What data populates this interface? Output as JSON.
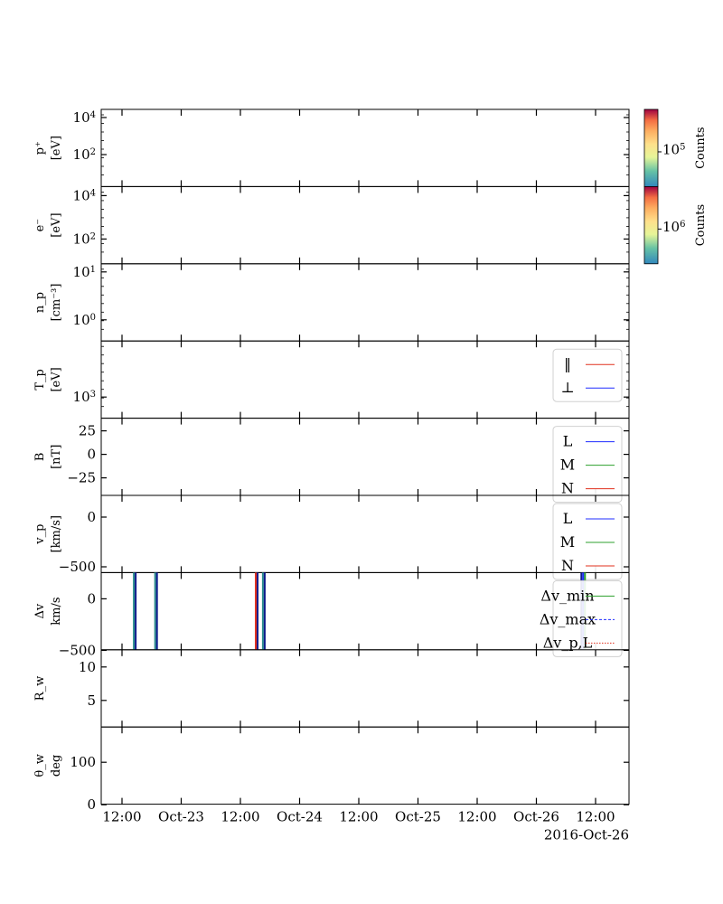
{
  "figure": {
    "xaxis": {
      "ticks": [
        "12:00",
        "Oct-23",
        "12:00",
        "Oct-24",
        "12:00",
        "Oct-25",
        "12:00",
        "Oct-26",
        "12:00"
      ],
      "date_label": "2016-Oct-26"
    }
  },
  "colors": {
    "red": "#e0301e",
    "blue": "#1f2cff",
    "green": "#2ca02c",
    "teal": "#2a8c8c",
    "navy": "#0c1a8a"
  },
  "chart_data": [
    {
      "type": "heatmap",
      "ylabel": "p⁺ [eV]",
      "yscale": "log",
      "yticks": [
        "10^4",
        "10^2"
      ],
      "colorbar": {
        "label": "Counts",
        "tick": "10^5",
        "colormap": "Spectral_r"
      }
    },
    {
      "type": "heatmap",
      "ylabel": "e⁻ [eV]",
      "yscale": "log",
      "yticks": [
        "10^4",
        "10^2"
      ],
      "colorbar": {
        "label": "Counts",
        "tick": "10^6",
        "colormap": "Spectral_r"
      }
    },
    {
      "type": "line",
      "ylabel": "n_p [cm⁻³]",
      "yscale": "log",
      "yticks": [
        "10^1",
        "10^0"
      ],
      "series": []
    },
    {
      "type": "line",
      "ylabel": "T_p [eV]",
      "yscale": "log",
      "yticks": [
        "10^3"
      ],
      "legend": {
        "placement": "right",
        "entries": [
          {
            "label": "‖",
            "color": "#e0301e",
            "style": "solid"
          },
          {
            "label": "⊥",
            "color": "#1f2cff",
            "style": "solid"
          }
        ]
      }
    },
    {
      "type": "line",
      "ylabel": "B [nT]",
      "yticks": [
        "25",
        "0",
        "−25"
      ],
      "ylim": [
        -45,
        45
      ],
      "legend": {
        "placement": "right",
        "entries": [
          {
            "label": "L",
            "color": "#1f2cff",
            "style": "solid"
          },
          {
            "label": "M",
            "color": "#2ca02c",
            "style": "solid"
          },
          {
            "label": "N",
            "color": "#e0301e",
            "style": "solid"
          }
        ]
      }
    },
    {
      "type": "line",
      "ylabel": "v_p [km/s]",
      "yticks": [
        "0",
        "−500"
      ],
      "ylim": [
        -600,
        200
      ],
      "legend": {
        "placement": "right",
        "entries": [
          {
            "label": "L",
            "color": "#1f2cff",
            "style": "solid"
          },
          {
            "label": "M",
            "color": "#2ca02c",
            "style": "solid"
          },
          {
            "label": "N",
            "color": "#e0301e",
            "style": "solid"
          }
        ]
      }
    },
    {
      "type": "line",
      "ylabel": "Δv km/s",
      "yticks": [
        "0",
        "−500"
      ],
      "ylim": [
        -500,
        150
      ],
      "legend": {
        "placement": "right",
        "entries": [
          {
            "label": "Δv_min",
            "color": "#2ca02c",
            "style": "solid"
          },
          {
            "label": "Δv_max",
            "color": "#1f2cff",
            "style": "dashed"
          },
          {
            "label": "Δv_p,L",
            "color": "#e0301e",
            "style": "dotted"
          }
        ]
      },
      "event_lines": [
        {
          "x_days": 0.1,
          "colors": [
            "#2a8c8c",
            "#0c1a8a"
          ]
        },
        {
          "x_days": 0.28,
          "colors": [
            "#2a8c8c",
            "#0c1a8a"
          ]
        },
        {
          "x_days": 1.13,
          "colors": [
            "#e0301e",
            "#0c1a8a"
          ]
        },
        {
          "x_days": 1.19,
          "colors": [
            "#2a8c8c",
            "#0c1a8a"
          ]
        },
        {
          "x_days": 3.88,
          "colors": [
            "#0c1a8a",
            "#1f2cff",
            "#2ca02c"
          ]
        }
      ]
    },
    {
      "type": "line",
      "ylabel": "R_w",
      "yticks": [
        "10",
        "5"
      ],
      "ylim": [
        0,
        13
      ]
    },
    {
      "type": "line",
      "ylabel": "θ_w deg",
      "yticks": [
        "100",
        "0"
      ],
      "ylim": [
        0,
        190
      ]
    }
  ]
}
